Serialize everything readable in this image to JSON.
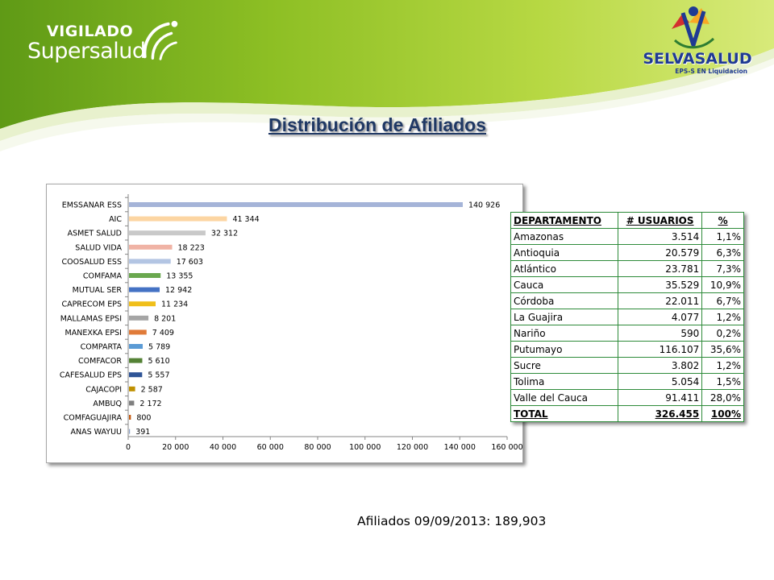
{
  "header": {
    "logo_left_line1": "VIGILADO",
    "logo_left_line2": "Supersalud",
    "logo_right_name": "SELVASALUD",
    "logo_right_tagline": "EPS-S EN Liquidacion"
  },
  "title": "Distribución de Afiliados",
  "colors": {
    "header_green": "#8dbf24",
    "header_green_light": "#b7d843",
    "title": "#1f3864",
    "table_border": "#2e8b3a"
  },
  "chart_data": {
    "type": "bar",
    "orientation": "horizontal",
    "categories": [
      "EMSSANAR ESS",
      "AIC",
      "ASMET SALUD",
      "SALUD VIDA",
      "COOSALUD ESS",
      "COMFAMA",
      "MUTUAL SER",
      "CAPRECOM EPS",
      "MALLAMAS EPSI",
      "MANEXKA EPSI",
      "COMPARTA",
      "COMFACOR",
      "CAFESALUD EPS",
      "CAJACOPI",
      "AMBUQ",
      "COMFAGUAJIRA",
      "ANAS WAYUU"
    ],
    "values": [
      140926,
      41344,
      32312,
      18223,
      17603,
      13355,
      12942,
      11234,
      8201,
      7409,
      5789,
      5610,
      5557,
      2587,
      2172,
      800,
      391
    ],
    "value_labels": [
      "140 926",
      "41 344",
      "32 312",
      "18 223",
      "17 603",
      "13 355",
      "12 942",
      "11 234",
      "8 201",
      "7 409",
      "5 789",
      "5 610",
      "5 557",
      "2 587",
      "2 172",
      "800",
      "391"
    ],
    "bar_colors": [
      "#a5b4d8",
      "#fcd5a2",
      "#c9c9c9",
      "#f0b3a5",
      "#b3c5e3",
      "#6aa84f",
      "#4472c4",
      "#f0bf1a",
      "#a5a5a5",
      "#e07b39",
      "#5b9bd5",
      "#548235",
      "#2f5597",
      "#bf9000",
      "#7f7f7f",
      "#c55a11",
      "#8aa0c8"
    ],
    "xlim": [
      0,
      160000
    ],
    "x_ticks": [
      0,
      20000,
      40000,
      60000,
      80000,
      100000,
      120000,
      140000,
      160000
    ],
    "x_tick_labels": [
      "0",
      "20 000",
      "40 000",
      "60 000",
      "80 000",
      "100 000",
      "120 000",
      "140 000",
      "160 000"
    ],
    "grid": false,
    "legend": "none"
  },
  "table": {
    "headers": [
      "DEPARTAMENTO",
      "# USUARIOS",
      "%"
    ],
    "rows": [
      [
        "Amazonas",
        "3.514",
        "1,1%"
      ],
      [
        "Antioquia",
        "20.579",
        "6,3%"
      ],
      [
        "Atlántico",
        "23.781",
        "7,3%"
      ],
      [
        "Cauca",
        "35.529",
        "10,9%"
      ],
      [
        "Córdoba",
        "22.011",
        "6,7%"
      ],
      [
        "La Guajira",
        "4.077",
        "1,2%"
      ],
      [
        "Nariño",
        "590",
        "0,2%"
      ],
      [
        "Putumayo",
        "116.107",
        "35,6%"
      ],
      [
        "Sucre",
        "3.802",
        "1,2%"
      ],
      [
        "Tolima",
        "5.054",
        "1,5%"
      ],
      [
        "Valle del Cauca",
        "91.411",
        "28,0%"
      ]
    ],
    "total": [
      "TOTAL",
      "326.455",
      "100%"
    ]
  },
  "footer": "Afiliados 09/09/2013: 189,903"
}
